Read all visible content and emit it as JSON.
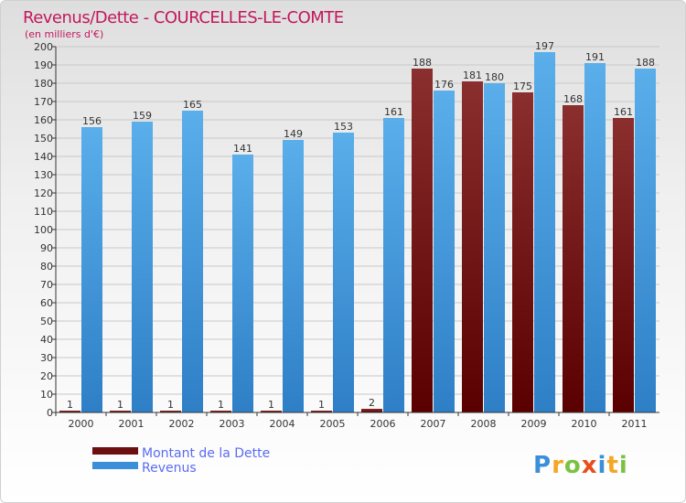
{
  "chart_data": {
    "type": "bar",
    "title": "Revenus/Dette - COURCELLES-LE-COMTE",
    "subtitle": "(en milliers d'€)",
    "categories": [
      "2000",
      "2001",
      "2002",
      "2003",
      "2004",
      "2005",
      "2006",
      "2007",
      "2008",
      "2009",
      "2010",
      "2011"
    ],
    "series": [
      {
        "name": "Montant de la Dette",
        "color": "#6b0f0f",
        "values": [
          1,
          1,
          1,
          1,
          1,
          1,
          2,
          188,
          181,
          175,
          168,
          161
        ]
      },
      {
        "name": "Revenus",
        "color": "#3a8fd8",
        "values": [
          156,
          159,
          165,
          141,
          149,
          153,
          161,
          176,
          180,
          197,
          191,
          188
        ]
      }
    ],
    "ylim": [
      0,
      200
    ],
    "yticks": [
      0,
      10,
      20,
      30,
      40,
      50,
      60,
      70,
      80,
      90,
      100,
      110,
      120,
      130,
      140,
      150,
      160,
      170,
      180,
      190,
      200
    ],
    "grid": true,
    "legend": "bottom-left"
  },
  "brand": {
    "letters": [
      "P",
      "r",
      "o",
      "x",
      "i",
      "t",
      "i"
    ],
    "colors": [
      "#3a8fd8",
      "#f5a623",
      "#7cc242",
      "#e84e1b",
      "#3a8fd8",
      "#f5a623",
      "#7cc242"
    ]
  }
}
